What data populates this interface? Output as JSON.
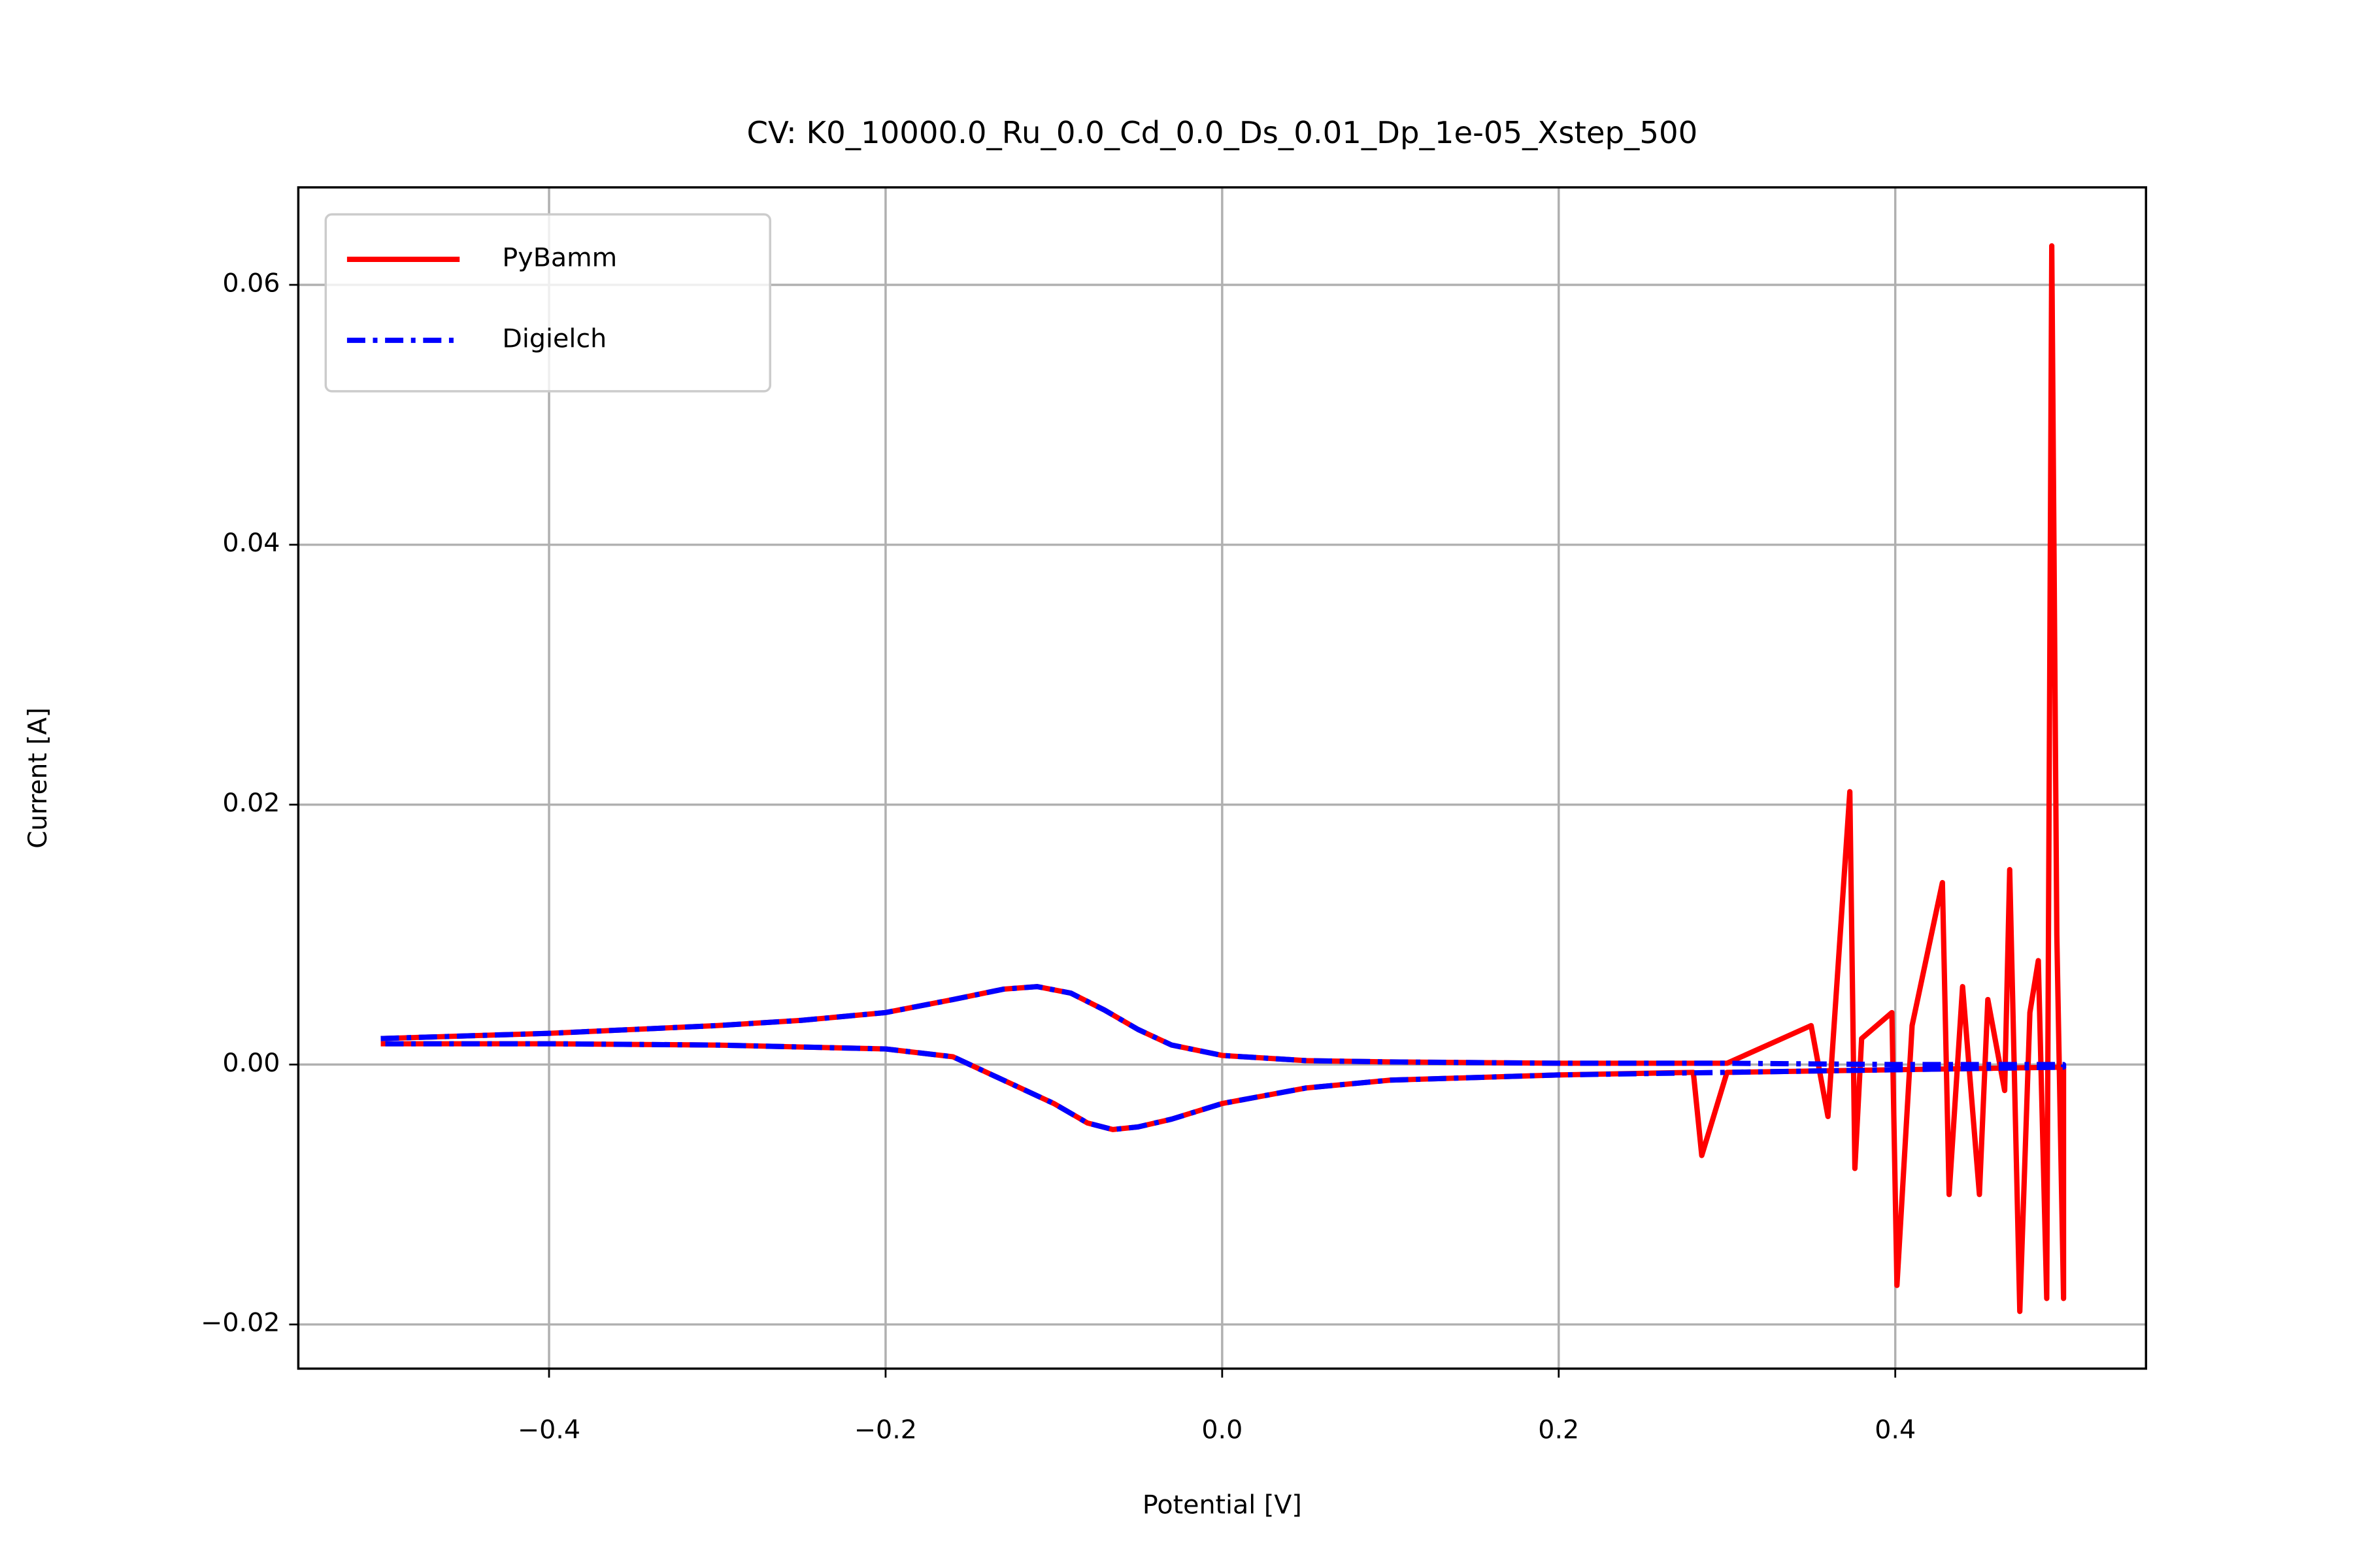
{
  "chart_data": {
    "type": "line",
    "title": "CV: K0_10000.0_Ru_0.0_Cd_0.0_Ds_0.01_Dp_1e-05_Xstep_500",
    "xlabel": "Potential [V]",
    "ylabel": "Current [A]",
    "xlim": [
      -0.549,
      0.549
    ],
    "ylim": [
      -0.0234,
      0.0675
    ],
    "xticks": [
      {
        "value": -0.4,
        "label": "−0.4"
      },
      {
        "value": -0.2,
        "label": "−0.2"
      },
      {
        "value": 0,
        "label": "0.0"
      },
      0.2,
      0.4
    ],
    "yticks": [
      {
        "value": -0.02,
        "label": "−0.02"
      },
      {
        "value": 0,
        "label": "0.00"
      },
      0.02,
      0.04,
      0.06
    ],
    "grid": true,
    "legend": "upper left",
    "series": [
      {
        "name": "PyBamm",
        "color": "#ff0000",
        "dash": "solid",
        "x": [
          -0.5,
          -0.4,
          -0.3,
          -0.25,
          -0.2,
          -0.16,
          -0.13,
          -0.11,
          -0.09,
          -0.07,
          -0.05,
          -0.03,
          0,
          0.05,
          0.1,
          0.2,
          0.3,
          0.35,
          0.36,
          0.373,
          0.376,
          0.38,
          0.398,
          0.401,
          0.41,
          0.428,
          0.432,
          0.44,
          0.45,
          0.455,
          0.465,
          0.468,
          0.474,
          0.48,
          0.485,
          0.49,
          0.493,
          0.496,
          0.5,
          0.5,
          0.4,
          0.3,
          0.285,
          0.28,
          0.2,
          0.1,
          0.05,
          0,
          -0.03,
          -0.05,
          -0.065,
          -0.08,
          -0.1,
          -0.13,
          -0.16,
          -0.2,
          -0.3,
          -0.4,
          -0.5
        ],
        "values": [
          0.002,
          0.0024,
          0.003,
          0.0034,
          0.004,
          0.005,
          0.0058,
          0.006,
          0.0055,
          0.0042,
          0.0027,
          0.0015,
          0.0007,
          0.0003,
          0.0002,
          0.0001,
          0.0001,
          0.003,
          -0.004,
          0.021,
          -0.008,
          0.002,
          0.004,
          -0.017,
          0.003,
          0.014,
          -0.01,
          0.006,
          -0.01,
          0.005,
          -0.002,
          0.015,
          -0.019,
          0.004,
          0.008,
          -0.018,
          0.063,
          0.01,
          -0.018,
          -0.0002,
          -0.0004,
          -0.0006,
          -0.007,
          -0.0006,
          -0.0008,
          -0.0012,
          -0.0018,
          -0.003,
          -0.0042,
          -0.0048,
          -0.005,
          -0.0045,
          -0.003,
          -0.0012,
          0.0006,
          0.0012,
          0.0015,
          0.0016,
          0.0016
        ]
      },
      {
        "name": "Digielch",
        "color": "#0000ff",
        "dash": "dashdot",
        "x": [
          -0.5,
          -0.4,
          -0.3,
          -0.25,
          -0.2,
          -0.16,
          -0.13,
          -0.11,
          -0.09,
          -0.07,
          -0.05,
          -0.03,
          0,
          0.05,
          0.1,
          0.2,
          0.3,
          0.4,
          0.5,
          0.5,
          0.4,
          0.3,
          0.2,
          0.1,
          0.05,
          0,
          -0.03,
          -0.05,
          -0.065,
          -0.08,
          -0.1,
          -0.13,
          -0.16,
          -0.2,
          -0.3,
          -0.4,
          -0.5
        ],
        "values": [
          0.002,
          0.0024,
          0.003,
          0.0034,
          0.004,
          0.005,
          0.0058,
          0.006,
          0.0055,
          0.0042,
          0.0027,
          0.0015,
          0.0007,
          0.0003,
          0.0002,
          0.0001,
          0.0001,
          0,
          0,
          -0.0002,
          -0.0004,
          -0.0006,
          -0.0008,
          -0.0012,
          -0.0018,
          -0.003,
          -0.0042,
          -0.0048,
          -0.005,
          -0.0045,
          -0.003,
          -0.0012,
          0.0006,
          0.0012,
          0.0015,
          0.0016,
          0.0016
        ]
      }
    ]
  }
}
